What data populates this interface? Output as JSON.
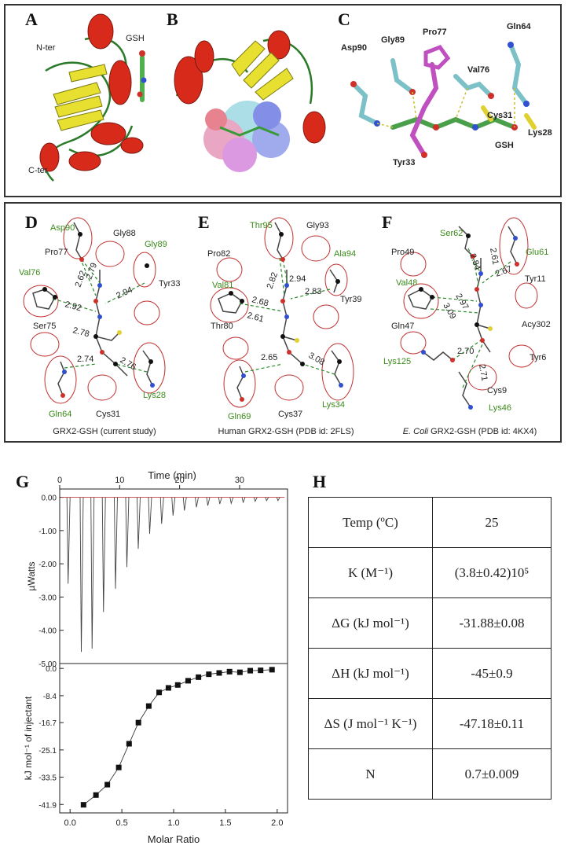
{
  "panels": {
    "A": {
      "label": "A",
      "nter": "N-ter",
      "cter": "C-ter",
      "gsh": "GSH"
    },
    "B": {
      "label": "B"
    },
    "C": {
      "label": "C",
      "residues": [
        "Asp90",
        "Gly89",
        "Pro77",
        "Gln64",
        "Val76",
        "Cys31",
        "Lys28",
        "Tyr33",
        "GSH"
      ]
    },
    "D": {
      "label": "D",
      "caption": "GRX2-GSH (current study)",
      "black": [
        "Gly88",
        "Pro77",
        "Tyr33",
        "Ser75",
        "Cys31"
      ],
      "green": [
        "Asp90",
        "Gly89",
        "Val76",
        "Lys28",
        "Gln64"
      ],
      "distances": [
        "2.62",
        "2.79",
        "2.94",
        "2.92",
        "2.78",
        "2.74",
        "2.76"
      ]
    },
    "E": {
      "label": "E",
      "caption": "Human GRX2-GSH (PDB id: 2FLS)",
      "black": [
        "Gly93",
        "Pro82",
        "Tyr39",
        "Thr80",
        "Cys37"
      ],
      "green": [
        "Thr95",
        "Ala94",
        "Val81",
        "Gln69",
        "Lys34"
      ],
      "distances": [
        "2.94",
        "2.82",
        "2.83",
        "2.68",
        "2.61",
        "2.65",
        "3.08"
      ]
    },
    "F": {
      "label": "F",
      "caption_italic": "E. Coli",
      "caption": " GRX2-GSH (PDB id: 4KX4)",
      "black": [
        "Pro49",
        "Tyr11",
        "Gln47",
        "Acy302",
        "Tyr6",
        "Cys9"
      ],
      "green": [
        "Ser62",
        "Glu61",
        "Val48",
        "Lys125",
        "Lys46"
      ],
      "distances": [
        "2.61",
        "2.84",
        "2.67",
        "2.97",
        "3.09",
        "2.70",
        "2.71"
      ]
    },
    "G": {
      "label": "G"
    },
    "H": {
      "label": "H"
    }
  },
  "chart_data": [
    {
      "type": "line",
      "panel": "G-top",
      "xlabel": "Time (min)",
      "ylabel": "µWatts",
      "xlim": [
        0,
        38
      ],
      "ylim": [
        -5.0,
        0.25
      ],
      "x_ticks": [
        0,
        10,
        20,
        30
      ],
      "y_ticks": [
        "0.00",
        "-1.00",
        "-2.00",
        "-3.00",
        "-4.00",
        "-5.00"
      ],
      "series": [
        {
          "peak_times": [
            1.4,
            3.6,
            5.4,
            7.3,
            9.3,
            11.2,
            13.1,
            15.0,
            17.0,
            18.9,
            20.8,
            22.8,
            24.7,
            26.7,
            28.6,
            30.6,
            32.6,
            34.5,
            36.4
          ],
          "peak_depths": [
            -2.6,
            -4.65,
            -4.55,
            -3.45,
            -2.75,
            -2.1,
            -1.55,
            -1.1,
            -0.8,
            -0.55,
            -0.4,
            -0.3,
            -0.25,
            -0.2,
            -0.18,
            -0.15,
            -0.12,
            -0.1,
            -0.1
          ]
        }
      ]
    },
    {
      "type": "scatter",
      "panel": "G-bottom",
      "xlabel": "Molar Ratio",
      "ylabel": "kJ mol⁻¹ of injectant",
      "xlim": [
        -0.1,
        2.1
      ],
      "ylim": [
        -44.5,
        1.5
      ],
      "x_ticks": [
        "0.0",
        "0.5",
        "1.0",
        "1.5",
        "2.0"
      ],
      "y_ticks": [
        "0.0",
        "-8.4",
        "-16.7",
        "-25.1",
        "-33.5",
        "-41.9"
      ],
      "series": [
        {
          "x": [
            0.13,
            0.25,
            0.36,
            0.47,
            0.57,
            0.66,
            0.76,
            0.86,
            0.95,
            1.04,
            1.14,
            1.24,
            1.34,
            1.44,
            1.54,
            1.64,
            1.74,
            1.84,
            1.95
          ],
          "y": [
            -42.0,
            -39.0,
            -35.8,
            -30.5,
            -23.2,
            -16.7,
            -11.6,
            -7.4,
            -6.0,
            -5.1,
            -3.8,
            -2.7,
            -1.8,
            -1.4,
            -1.0,
            -1.2,
            -0.7,
            -0.6,
            -0.4
          ]
        }
      ]
    }
  ],
  "table_H": {
    "rows": [
      {
        "param": "Temp (ºC)",
        "value": "25"
      },
      {
        "param": "K (M⁻¹)",
        "value": "(3.8±0.42)10⁵"
      },
      {
        "param": "ΔG (kJ mol⁻¹)",
        "value": "-31.88±0.08"
      },
      {
        "param": "ΔH (kJ mol⁻¹)",
        "value": "-45±0.9"
      },
      {
        "param": "ΔS (J mol⁻¹ K⁻¹)",
        "value": "-47.18±0.11"
      },
      {
        "param": "N",
        "value": "0.7±0.009"
      }
    ]
  }
}
